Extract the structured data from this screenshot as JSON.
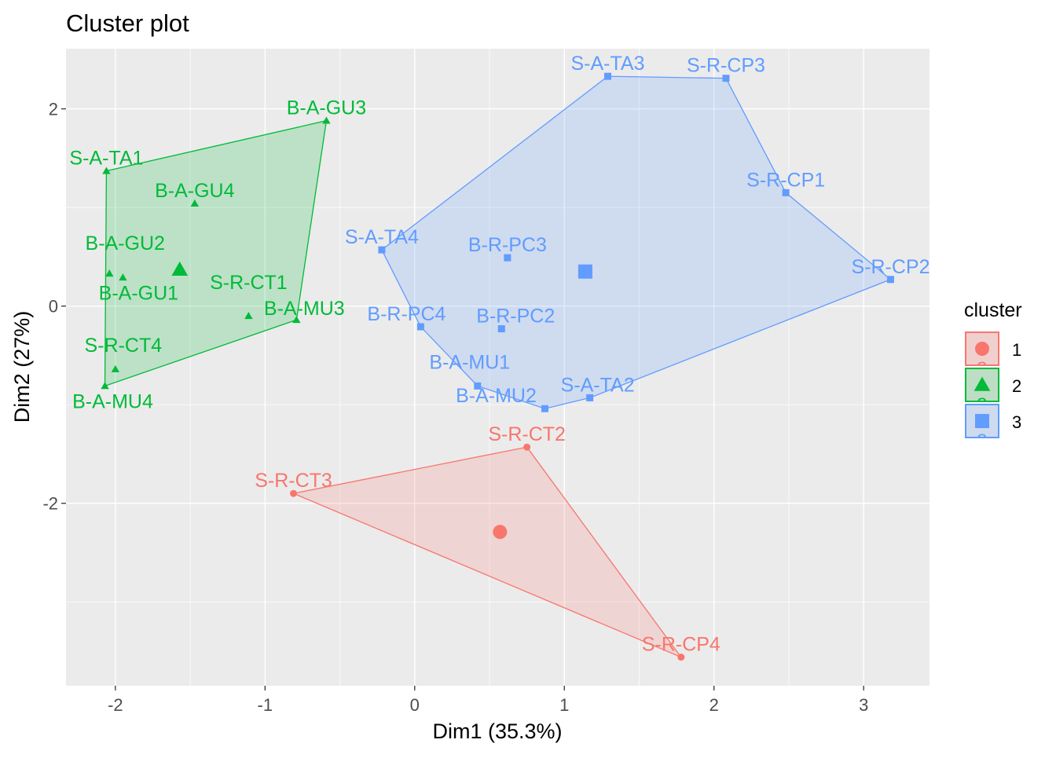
{
  "chart_data": {
    "type": "scatter",
    "title": "Cluster plot",
    "xlabel": "Dim1 (35.3%)",
    "ylabel": "Dim2 (27%)",
    "xlim": [
      -2.33,
      3.44
    ],
    "ylim": [
      -3.85,
      2.61
    ],
    "xticks": [
      -2,
      -1,
      0,
      1,
      2,
      3
    ],
    "yticks": [
      -2,
      0,
      2
    ],
    "grid": true,
    "legend": {
      "title": "cluster",
      "position": "right",
      "key_text": "a"
    },
    "clusters": [
      {
        "name": "1",
        "color": "#F8766D",
        "fill": "#F0D0CE",
        "shape": "circle",
        "centroid": [
          0.57,
          -2.29
        ],
        "hull": [
          "S-R-CT2",
          "S-R-CP4",
          "S-R-CT3"
        ],
        "points": [
          {
            "label": "S-R-CT2",
            "x": 0.75,
            "y": -1.43
          },
          {
            "label": "S-R-CT3",
            "x": -0.81,
            "y": -1.9
          },
          {
            "label": "S-R-CP4",
            "x": 1.78,
            "y": -3.56
          }
        ]
      },
      {
        "name": "2",
        "color": "#00BA38",
        "fill": "#BDDEC5",
        "shape": "triangle",
        "centroid": [
          -1.57,
          0.37
        ],
        "hull": [
          "S-A-TA1",
          "B-A-GU3",
          "B-A-MU3",
          "B-A-MU4"
        ],
        "points": [
          {
            "label": "B-A-GU3",
            "x": -0.59,
            "y": 1.88
          },
          {
            "label": "S-A-TA1",
            "x": -2.06,
            "y": 1.37
          },
          {
            "label": "B-A-GU4",
            "x": -1.47,
            "y": 1.04
          },
          {
            "label": "B-A-GU2",
            "x": -2.04,
            "y": 0.33
          },
          {
            "label": "B-A-GU1",
            "x": -1.95,
            "y": 0.29
          },
          {
            "label": "S-R-CT1",
            "x": -1.11,
            "y": -0.1
          },
          {
            "label": "B-A-MU3",
            "x": -0.79,
            "y": -0.14
          },
          {
            "label": "S-R-CT4",
            "x": -2.0,
            "y": -0.64
          },
          {
            "label": "B-A-MU4",
            "x": -2.07,
            "y": -0.81
          }
        ]
      },
      {
        "name": "3",
        "color": "#619CFF",
        "fill": "#CEDAEE",
        "shape": "square",
        "centroid": [
          1.14,
          0.35
        ],
        "hull": [
          "S-A-TA3",
          "S-R-CP3",
          "S-R-CP1",
          "S-R-CP2",
          "S-A-TA2",
          "B-A-MU2",
          "B-A-MU1",
          "B-R-PC4",
          "S-A-TA4"
        ],
        "points": [
          {
            "label": "S-A-TA3",
            "x": 1.29,
            "y": 2.33
          },
          {
            "label": "S-R-CP3",
            "x": 2.08,
            "y": 2.31
          },
          {
            "label": "S-R-CP1",
            "x": 2.48,
            "y": 1.15
          },
          {
            "label": "S-R-CP2",
            "x": 3.18,
            "y": 0.27
          },
          {
            "label": "S-A-TA4",
            "x": -0.22,
            "y": 0.57
          },
          {
            "label": "B-R-PC3",
            "x": 0.62,
            "y": 0.49
          },
          {
            "label": "B-R-PC4",
            "x": 0.04,
            "y": -0.21
          },
          {
            "label": "B-R-PC2",
            "x": 0.58,
            "y": -0.23
          },
          {
            "label": "B-A-MU1",
            "x": 0.42,
            "y": -0.81
          },
          {
            "label": "B-A-MU2",
            "x": 0.87,
            "y": -1.04
          },
          {
            "label": "S-A-TA2",
            "x": 1.17,
            "y": -0.93
          }
        ]
      }
    ]
  }
}
